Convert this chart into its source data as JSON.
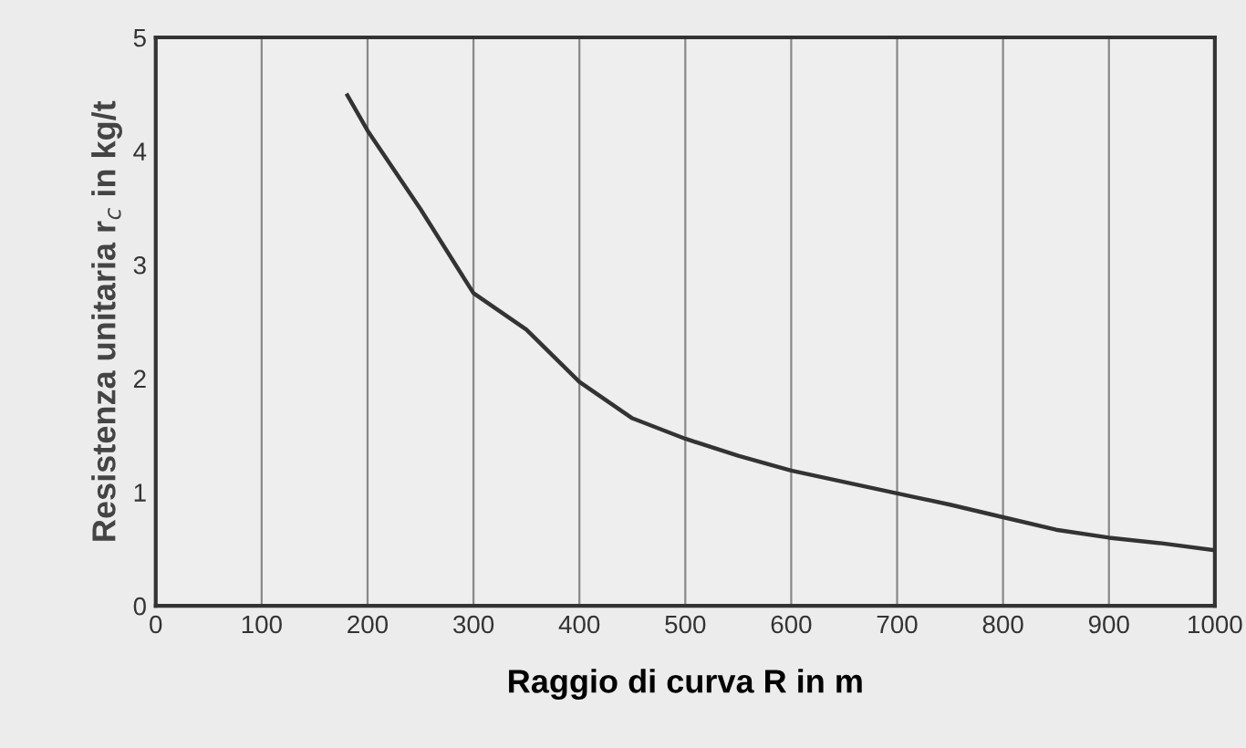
{
  "chart_data": {
    "type": "line",
    "xlabel": "Raggio di curva R in m",
    "ylabel": "Resistenza unitaria r$_{c}$ in kg/t",
    "series": [
      {
        "color": "#333333",
        "x": [
          181,
          200,
          250,
          300,
          350,
          400,
          450,
          500,
          550,
          600,
          650,
          700,
          750,
          800,
          850,
          900,
          950,
          1000
        ],
        "values": [
          4.49,
          4.18,
          3.49,
          2.75,
          2.43,
          1.97,
          1.65,
          1.47,
          1.32,
          1.19,
          1.09,
          0.99,
          0.89,
          0.78,
          0.67,
          0.6,
          0.55,
          0.49
        ]
      }
    ],
    "xlim": [
      0,
      1000
    ],
    "ylim": [
      0,
      5
    ],
    "xticks": [
      0,
      100,
      200,
      300,
      400,
      500,
      600,
      700,
      800,
      900,
      1000
    ],
    "yticks": [
      0,
      1,
      2,
      3,
      4,
      5
    ],
    "grid": "x",
    "legend": false,
    "marker": "none",
    "line_style": "solid"
  }
}
